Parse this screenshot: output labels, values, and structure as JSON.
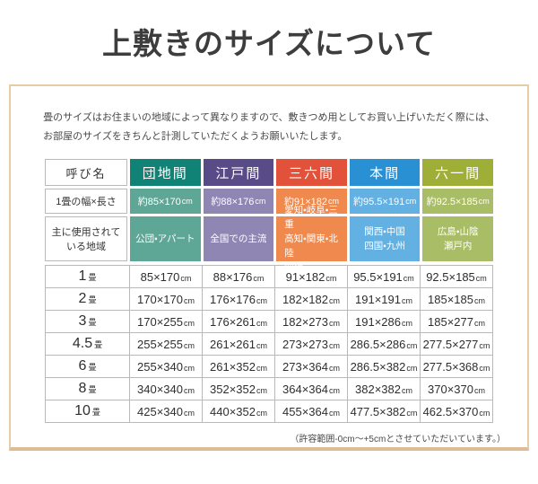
{
  "page": {
    "title": "上敷きのサイズについて",
    "intro_lines": [
      "畳のサイズはお住まいの地域によって異なりますので、敷きつめ用としてお買い上げいただく際には、",
      "お部屋のサイズをきちんと計測していただくようお願いいたします。"
    ],
    "footnote": "（許容範囲-0cm～+5cmとさせていただいています。）"
  },
  "frame": {
    "border_color": "#e7cca8"
  },
  "table": {
    "corner_label": "呼び名",
    "width_row_label": "1畳の幅×長さ",
    "region_row_label": "主に使用されて\nいる地域",
    "unit": "畳",
    "cm": "cm",
    "columns": [
      {
        "label": "団地間",
        "color": "#108376",
        "light": "#5ea797",
        "size": "約85×170",
        "regions": "公団・アパート"
      },
      {
        "label": "江戸間",
        "color": "#584b87",
        "light": "#8f86b4",
        "size": "約88×176",
        "regions": "全国での主流"
      },
      {
        "label": "三六間",
        "color": "#e25139",
        "light": "#ef894e",
        "size": "約91×182",
        "regions": "愛知・岐阜・三重\n高知・関東・北陸\n沖縄"
      },
      {
        "label": "本間",
        "color": "#2991d3",
        "light": "#63b0e3",
        "size": "約95.5×191",
        "regions": "関西・中国\n四国・九州"
      },
      {
        "label": "六一間",
        "color": "#9fae37",
        "light": "#a9bd66",
        "size": "約92.5×185",
        "regions": "広島・山陰\n瀬戸内"
      }
    ],
    "rows": [
      {
        "count": "1",
        "values": [
          "85×170",
          "88×176",
          "91×182",
          "95.5×191",
          "92.5×185"
        ]
      },
      {
        "count": "2",
        "values": [
          "170×170",
          "176×176",
          "182×182",
          "191×191",
          "185×185"
        ]
      },
      {
        "count": "3",
        "values": [
          "170×255",
          "176×261",
          "182×273",
          "191×286",
          "185×277"
        ]
      },
      {
        "count": "4.5",
        "values": [
          "255×255",
          "261×261",
          "273×273",
          "286.5×286",
          "277.5×277"
        ]
      },
      {
        "count": "6",
        "values": [
          "255×340",
          "261×352",
          "273×364",
          "286.5×382",
          "277.5×368"
        ]
      },
      {
        "count": "8",
        "values": [
          "340×340",
          "352×352",
          "364×364",
          "382×382",
          "370×370"
        ]
      },
      {
        "count": "10",
        "values": [
          "425×340",
          "440×352",
          "455×364",
          "477.5×382",
          "462.5×370"
        ]
      }
    ]
  }
}
